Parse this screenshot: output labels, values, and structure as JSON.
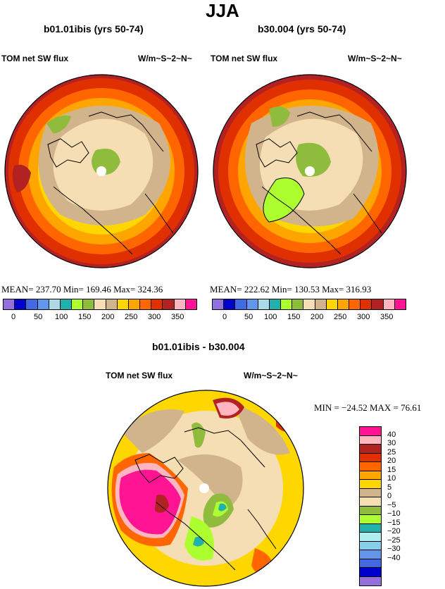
{
  "title": "JJA",
  "panels": [
    {
      "heading": "b01.01ibis (yrs 50-74)",
      "var_label": "TOM net SW flux",
      "units": "W/m~S~2~N~",
      "stats": "MEAN= 237.70   Min= 169.46   Max= 324.36"
    },
    {
      "heading": "b30.004 (yrs 50-74)",
      "var_label": "TOM net SW flux",
      "units": "W/m~S~2~N~",
      "stats": "MEAN= 222.62   Min= 130.53   Max= 316.93"
    }
  ],
  "abs_colorbar": {
    "colors": [
      "#9370db",
      "#0000cd",
      "#4169e1",
      "#6495ed",
      "#add8e6",
      "#20b2aa",
      "#adff2f",
      "#8fbc3c",
      "#f5deb3",
      "#d2b48c",
      "#ffd700",
      "#ffa500",
      "#ff6600",
      "#e03000",
      "#b22222",
      "#ffb6c1",
      "#ff1493"
    ],
    "tick_labels": [
      "0",
      "50",
      "100",
      "150",
      "200",
      "250",
      "300",
      "350"
    ]
  },
  "diff": {
    "heading": "b01.01ibis - b30.004",
    "var_label": "TOM net SW flux",
    "units": "W/m~S~2~N~",
    "stats": "MIN = −24.52  MAX =  76.61",
    "colorbar": {
      "colors": [
        "#ff1493",
        "#ffb6c1",
        "#b22222",
        "#e03000",
        "#ff6600",
        "#ffa500",
        "#ffd700",
        "#d2b48c",
        "#f5deb3",
        "#8fbc3c",
        "#adff2f",
        "#20b2aa",
        "#afeeee",
        "#87ceeb",
        "#6495ed",
        "#4169e1",
        "#0000cd",
        "#9370db"
      ],
      "tick_labels": [
        "40",
        "30",
        "25",
        "20",
        "15",
        "10",
        "5",
        "0",
        "−5",
        "−10",
        "−15",
        "−20",
        "−25",
        "−30",
        "−40"
      ]
    }
  }
}
